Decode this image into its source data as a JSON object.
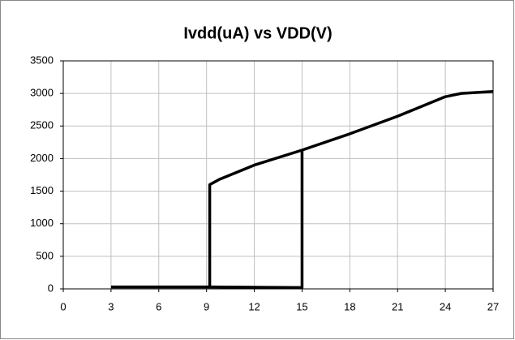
{
  "chart_data": {
    "type": "line",
    "title": "Ivdd(uA) vs VDD(V)",
    "xlim": [
      0,
      27
    ],
    "xticks": [
      0,
      3,
      6,
      9,
      12,
      15,
      18,
      21,
      24,
      27
    ],
    "ylim": [
      0,
      3500
    ],
    "yticks": [
      0,
      500,
      1000,
      1500,
      2000,
      2500,
      3000,
      3500
    ],
    "grid": true,
    "series": [
      {
        "color": "#000000",
        "line_width": 1,
        "x": [
          0,
          3
        ],
        "values": [
          0,
          0
        ]
      },
      {
        "color": "#000000",
        "line_width": 3.5,
        "x": [
          3,
          9.2,
          9.2,
          9.8,
          12,
          15,
          18,
          21,
          24,
          25,
          27
        ],
        "values": [
          30,
          30,
          1600,
          1680,
          1900,
          2130,
          2380,
          2650,
          2950,
          3000,
          3030
        ]
      },
      {
        "color": "#000000",
        "line_width": 3.5,
        "x": [
          15,
          15,
          9.2
        ],
        "values": [
          2130,
          20,
          30
        ]
      }
    ]
  }
}
